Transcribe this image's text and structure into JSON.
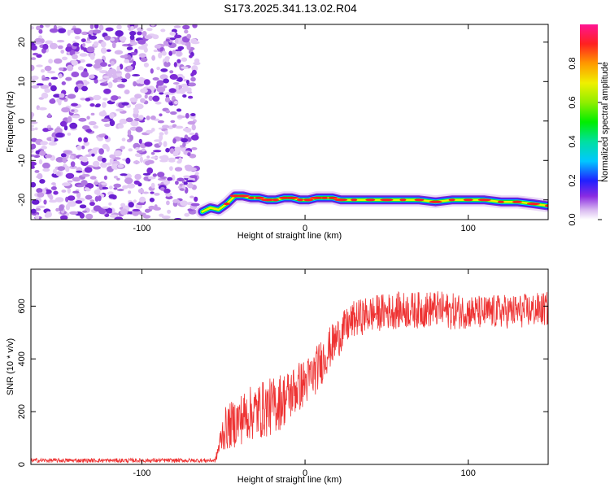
{
  "title": "S173.2025.341.13.02.R04",
  "chart_data": [
    {
      "type": "heatmap",
      "name": "spectrogram",
      "xlabel": "Height of straight line (km)",
      "ylabel": "Frequency (Hz)",
      "xlim": [
        -168,
        149
      ],
      "ylim": [
        -25,
        24.5
      ],
      "xticks": [
        -100,
        0,
        100
      ],
      "yticks": [
        20,
        10,
        0,
        -10,
        -20
      ],
      "signal_track": {
        "x": [
          -63,
          -58,
          -53,
          -48,
          -43,
          -38,
          -33,
          -28,
          -23,
          -18,
          -13,
          -8,
          -3,
          2,
          7,
          12,
          17,
          22,
          30,
          40,
          50,
          60,
          70,
          80,
          90,
          100,
          110,
          120,
          130,
          140,
          149
        ],
        "frequency_hz": [
          -23,
          -22,
          -22.5,
          -21,
          -19,
          -19,
          -19.5,
          -19.5,
          -20,
          -20,
          -19.5,
          -19.5,
          -20,
          -20,
          -19.5,
          -19.5,
          -19.5,
          -20,
          -20,
          -20,
          -20,
          -20,
          -20,
          -20.5,
          -20,
          -20,
          -20,
          -20.5,
          -20.5,
          -21,
          -21.5
        ]
      },
      "noise_region_x": [
        -168,
        -63
      ],
      "colorbar": {
        "label": "Normalized spectral amplitude",
        "range": [
          0,
          1
        ],
        "ticks": [
          "0.0",
          "0.2",
          "0.4",
          "0.6",
          "0.8"
        ]
      }
    },
    {
      "type": "line",
      "name": "snr",
      "xlabel": "Height of straight line (km)",
      "ylabel": "SNR (10 * v/v)",
      "xlim": [
        -168,
        149
      ],
      "ylim": [
        0,
        740
      ],
      "xticks": [
        -100,
        0,
        100
      ],
      "yticks": [
        0,
        200,
        400,
        600
      ],
      "series": [
        {
          "name": "SNR",
          "color": "#ee3333",
          "x": [
            -168,
            -140,
            -100,
            -70,
            -55,
            -50,
            -45,
            -40,
            -35,
            -30,
            -25,
            -20,
            -15,
            -10,
            -5,
            0,
            5,
            10,
            15,
            20,
            25,
            30,
            40,
            50,
            60,
            70,
            80,
            90,
            100,
            110,
            120,
            130,
            140,
            149
          ],
          "mean": [
            15,
            15,
            15,
            15,
            15,
            130,
            150,
            170,
            190,
            200,
            210,
            220,
            240,
            260,
            290,
            310,
            340,
            390,
            440,
            480,
            520,
            550,
            570,
            580,
            585,
            585,
            590,
            580,
            580,
            575,
            580,
            580,
            585,
            590
          ],
          "spread": [
            8,
            8,
            8,
            8,
            8,
            80,
            90,
            100,
            100,
            110,
            110,
            110,
            110,
            100,
            100,
            90,
            90,
            90,
            80,
            80,
            70,
            70,
            70,
            70,
            70,
            70,
            70,
            70,
            65,
            65,
            65,
            65,
            65,
            65
          ]
        }
      ]
    }
  ]
}
